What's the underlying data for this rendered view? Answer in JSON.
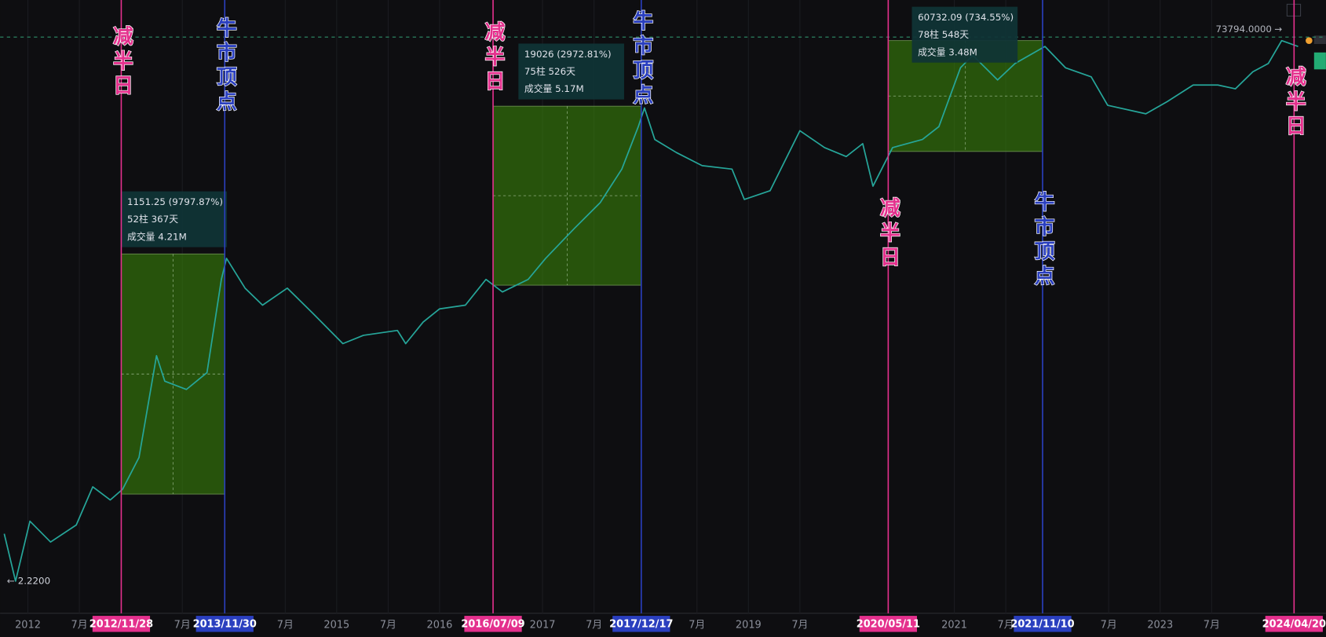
{
  "chart_data": {
    "type": "line",
    "log": true,
    "color": "#26a69a",
    "xlim": [
      2011.73,
      2024.61
    ],
    "ylim": [
      1.2,
      150000
    ],
    "x": [
      2011.77,
      2011.88,
      2012.02,
      2012.22,
      2012.47,
      2012.63,
      2012.8,
      2012.92,
      2013.08,
      2013.25,
      2013.33,
      2013.54,
      2013.74,
      2013.88,
      2013.93,
      2014.11,
      2014.28,
      2014.52,
      2014.77,
      2015.06,
      2015.26,
      2015.59,
      2015.67,
      2015.84,
      2016.0,
      2016.25,
      2016.45,
      2016.61,
      2016.86,
      2017.03,
      2017.31,
      2017.56,
      2017.77,
      2017.93,
      2017.99,
      2018.09,
      2018.3,
      2018.55,
      2018.84,
      2018.96,
      2019.21,
      2019.5,
      2019.74,
      2019.95,
      2020.11,
      2020.21,
      2020.4,
      2020.69,
      2020.85,
      2021.06,
      2021.18,
      2021.42,
      2021.59,
      2021.88,
      2022.08,
      2022.33,
      2022.49,
      2022.86,
      2023.07,
      2023.32,
      2023.56,
      2023.73,
      2023.9,
      2024.05,
      2024.18,
      2024.34
    ],
    "values": [
      5.5,
      2.22,
      7.0,
      4.7,
      6.5,
      13.5,
      10.5,
      12.9,
      23.7,
      166,
      102,
      87,
      120,
      714,
      1070,
      605,
      437,
      605,
      372,
      209,
      245,
      269,
      209,
      316,
      407,
      437,
      714,
      562,
      714,
      1070,
      1900,
      3100,
      5900,
      13300,
      19000,
      10400,
      8100,
      6300,
      5900,
      3300,
      3900,
      12300,
      8900,
      7500,
      9600,
      4250,
      8900,
      10400,
      13300,
      41000,
      52000,
      32500,
      44500,
      61700,
      41000,
      34500,
      20000,
      17000,
      21500,
      29500,
      29500,
      27400,
      38000,
      44500,
      69000,
      61700
    ],
    "xticks": [
      2012,
      {
        "value": 2012.5,
        "label": "7月"
      },
      {
        "value": 2013.5,
        "label": "7月"
      },
      {
        "value": 2014.5,
        "label": "7月"
      },
      2015,
      {
        "value": 2015.5,
        "label": "7月"
      },
      2016,
      2017,
      {
        "value": 2017.5,
        "label": "7月"
      },
      {
        "value": 2018.5,
        "label": "7月"
      },
      2019,
      {
        "value": 2019.5,
        "label": "7月"
      },
      2021,
      {
        "value": 2021.5,
        "label": "7月"
      },
      {
        "value": 2022.5,
        "label": "7月"
      },
      2023,
      {
        "value": 2023.5,
        "label": "7月"
      }
    ],
    "price_line": {
      "value": 73794,
      "label": "73794.0000"
    },
    "low_mark": {
      "value": 2.22,
      "label": "2.2200"
    },
    "events": [
      {
        "date": "2012/11/28",
        "label": "减半日",
        "color": "#e4308d",
        "measure": {
          "start_price": 11.75,
          "end_price": 1163,
          "lines": [
            "1151.25 (9797.87%)",
            "52柱 367天",
            "成交量 4.21M"
          ]
        }
      },
      {
        "date": "2013/11/30",
        "label": "牛市顶点",
        "color": "#2a3fbf"
      },
      {
        "date": "2016/07/09",
        "label": "减半日",
        "color": "#e4308d",
        "measure": {
          "start_price": 640,
          "end_price": 19666,
          "lines": [
            "19026 (2972.81%)",
            "75柱 526天",
            "成交量 5.17M"
          ]
        }
      },
      {
        "date": "2017/12/17",
        "label": "牛市顶点",
        "color": "#2a3fbf"
      },
      {
        "date": "2020/05/11",
        "label": "减半日",
        "color": "#e4308d",
        "measure": {
          "start_price": 8268,
          "end_price": 69000,
          "lines": [
            "60732.09 (734.55%)",
            "78柱 548天",
            "成交量 3.48M"
          ]
        }
      },
      {
        "date": "2021/11/10",
        "label": "牛市顶点",
        "color": "#2a3fbf"
      },
      {
        "date": "2024/04/20",
        "label": "减半日",
        "color": "#e4308d"
      }
    ]
  }
}
